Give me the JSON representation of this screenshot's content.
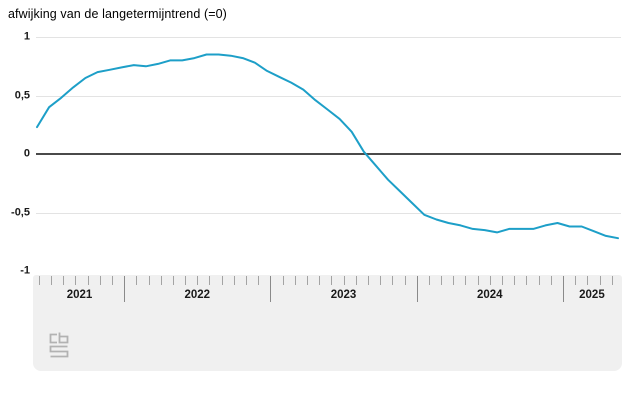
{
  "title": "afwijking van de langetermijntrend (=0)",
  "y_axis": {
    "labels": [
      "1",
      "0,5",
      "0",
      "-0,5",
      "-1"
    ],
    "values": [
      1,
      0.5,
      0,
      -0.5,
      -1
    ]
  },
  "x_axis": {
    "years": [
      "2021",
      "2022",
      "2023",
      "2024",
      "2025"
    ]
  },
  "logo": {
    "name": "CBS"
  },
  "colors": {
    "line": "#1d9fc8",
    "zero_line": "#4a4a4a",
    "gridline": "#e3e3e3",
    "panel_bg": "#f0f0f0",
    "month_tick": "#a3a3a3",
    "year_tick": "#8a8a8a"
  },
  "chart_data": {
    "type": "line",
    "title": "afwijking van de langetermijntrend (=0)",
    "xlabel": "",
    "ylabel": "afwijking van de langetermijntrend",
    "ylim": [
      -1,
      1
    ],
    "baseline": 0,
    "grid": true,
    "legend": false,
    "x": [
      "2021-05",
      "2021-06",
      "2021-07",
      "2021-08",
      "2021-09",
      "2021-10",
      "2021-11",
      "2021-12",
      "2022-01",
      "2022-02",
      "2022-03",
      "2022-04",
      "2022-05",
      "2022-06",
      "2022-07",
      "2022-08",
      "2022-09",
      "2022-10",
      "2022-11",
      "2022-12",
      "2023-01",
      "2023-02",
      "2023-03",
      "2023-04",
      "2023-05",
      "2023-06",
      "2023-07",
      "2023-08",
      "2023-09",
      "2023-10",
      "2023-11",
      "2023-12",
      "2024-01",
      "2024-02",
      "2024-03",
      "2024-04",
      "2024-05",
      "2024-06",
      "2024-07",
      "2024-08",
      "2024-09",
      "2024-10",
      "2024-11",
      "2024-12",
      "2025-01",
      "2025-02",
      "2025-03",
      "2025-04",
      "2025-05"
    ],
    "values": [
      0.23,
      0.4,
      0.48,
      0.57,
      0.65,
      0.7,
      0.72,
      0.74,
      0.76,
      0.75,
      0.77,
      0.8,
      0.8,
      0.82,
      0.85,
      0.85,
      0.84,
      0.82,
      0.78,
      0.71,
      0.66,
      0.61,
      0.55,
      0.46,
      0.38,
      0.3,
      0.19,
      0.02,
      -0.1,
      -0.22,
      -0.32,
      -0.42,
      -0.52,
      -0.56,
      -0.59,
      -0.61,
      -0.64,
      -0.65,
      -0.67,
      -0.64,
      -0.64,
      -0.64,
      -0.61,
      -0.59,
      -0.62,
      -0.62,
      -0.66,
      -0.7,
      -0.72
    ]
  }
}
